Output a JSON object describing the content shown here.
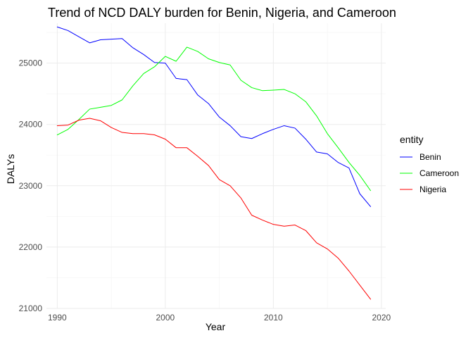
{
  "chart_data": {
    "type": "line",
    "title": "Trend of NCD DALY burden for Benin, Nigeria, and Cameroon",
    "xlabel": "Year",
    "ylabel": "DALYs",
    "xlim": [
      1989,
      2020.4
    ],
    "ylim": [
      21000,
      25650
    ],
    "x_ticks": [
      1990,
      2000,
      2010,
      2020
    ],
    "x_tick_labels": [
      "1990",
      "2000",
      "2010",
      "2020"
    ],
    "y_ticks": [
      21000,
      22000,
      23000,
      24000,
      25000
    ],
    "y_tick_labels": [
      "21000",
      "22000",
      "23000",
      "24000",
      "25000"
    ],
    "grid": true,
    "legend": {
      "title": "entity",
      "position": "right"
    },
    "x": [
      1990,
      1991,
      1992,
      1993,
      1994,
      1995,
      1996,
      1997,
      1998,
      1999,
      2000,
      2001,
      2002,
      2003,
      2004,
      2005,
      2006,
      2007,
      2008,
      2009,
      2010,
      2011,
      2012,
      2013,
      2014,
      2015,
      2016,
      2017,
      2018,
      2019
    ],
    "series": [
      {
        "name": "Benin",
        "color": "#0000ff",
        "values": [
          25590,
          25530,
          25430,
          25330,
          25380,
          25390,
          25400,
          25250,
          25140,
          25010,
          25000,
          24750,
          24730,
          24480,
          24340,
          24120,
          23980,
          23800,
          23770,
          23850,
          23920,
          23980,
          23940,
          23760,
          23550,
          23520,
          23380,
          23290,
          22870,
          22660
        ]
      },
      {
        "name": "Cameroon",
        "color": "#00ff00",
        "values": [
          23830,
          23920,
          24080,
          24250,
          24280,
          24310,
          24400,
          24630,
          24830,
          24940,
          25110,
          25030,
          25260,
          25190,
          25070,
          25010,
          24970,
          24720,
          24600,
          24550,
          24560,
          24570,
          24500,
          24370,
          24140,
          23850,
          23620,
          23380,
          23170,
          22920
        ]
      },
      {
        "name": "Nigeria",
        "color": "#ff0000",
        "values": [
          23980,
          23990,
          24070,
          24100,
          24060,
          23950,
          23870,
          23850,
          23850,
          23830,
          23760,
          23620,
          23620,
          23480,
          23330,
          23100,
          23000,
          22800,
          22520,
          22440,
          22370,
          22340,
          22360,
          22270,
          22070,
          21970,
          21820,
          21610,
          21380,
          21150
        ]
      }
    ]
  }
}
